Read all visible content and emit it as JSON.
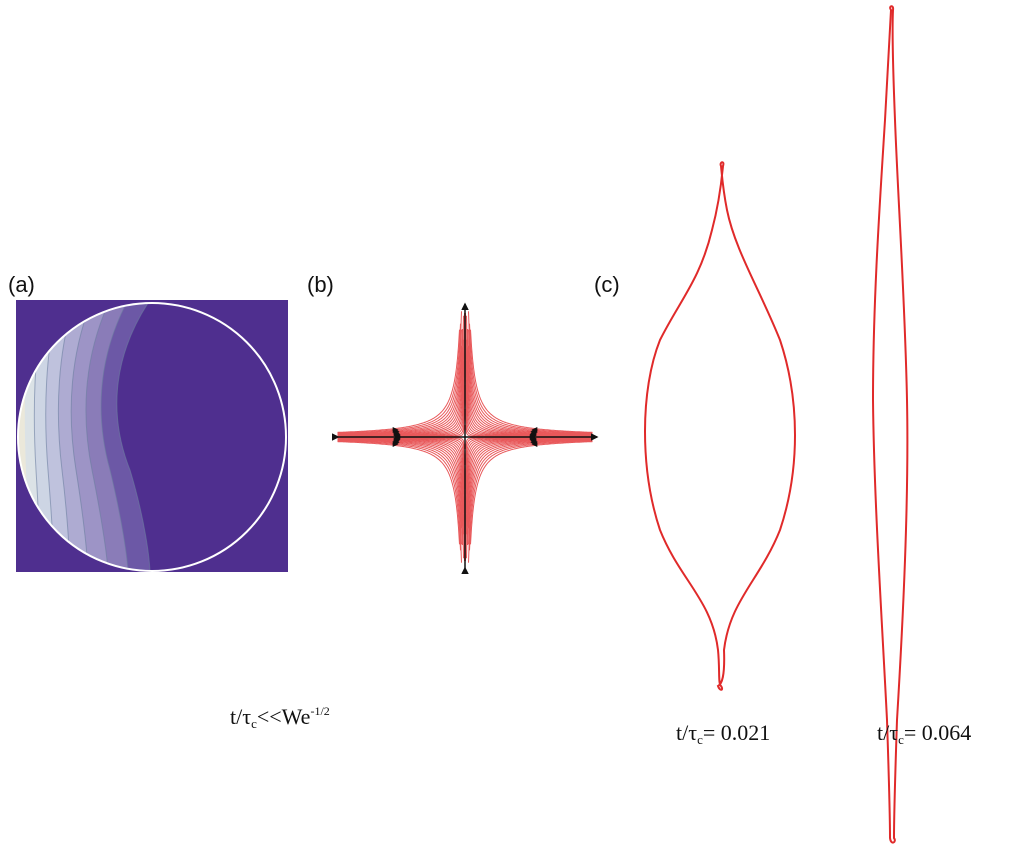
{
  "panels": {
    "a": {
      "label": "(a)"
    },
    "b": {
      "label": "(b)"
    },
    "c": {
      "label": "(c)"
    }
  },
  "captions": {
    "regime": {
      "prefix": "t/τ",
      "sub": "c",
      "middle": "<<We",
      "sup": "-1/2"
    },
    "shape1": {
      "prefix": "t/τ",
      "sub": "c",
      "value": "= 0.021"
    },
    "shape2": {
      "prefix": "t/τ",
      "sub": "c",
      "value": "= 0.064"
    }
  },
  "colors": {
    "background_field": "#4f2f8f",
    "streamline": "#e8585a",
    "arrow": "#111111",
    "drop_outline": "#e02a2a",
    "circle_outline": "#ffffff"
  }
}
